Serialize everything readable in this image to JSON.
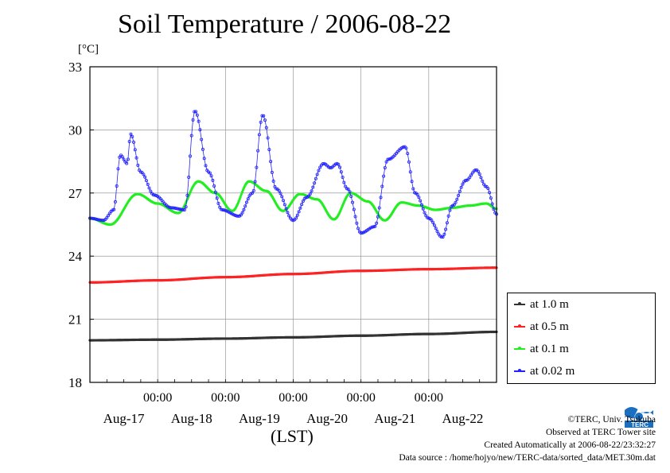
{
  "title": "Soil Temperature / 2006-08-22",
  "y_unit": "[°C]",
  "x_unit": "(LST)",
  "credits": {
    "line1": "©TERC, Univ. Tsukuba",
    "line2": "Observed at TERC Tower site",
    "line3": "Created Automatically at 2006-08-22/23:32:27",
    "line4": "Data source : /home/hojyo/new/TERC-data/sorted_data/MET.30m.dat"
  },
  "logo_text": "TERC",
  "colors": {
    "at_1_0m": "#333333",
    "at_0_5m": "#ff2222",
    "at_0_1m": "#22ee22",
    "at_0_02m": "#2222ff",
    "grid": "#888888"
  },
  "chart_data": {
    "type": "line",
    "title": "Soil Temperature / 2006-08-22",
    "ylabel": "[°C]",
    "xlabel": "(LST)",
    "ylim": [
      18,
      33
    ],
    "xlim": [
      0,
      6
    ],
    "x_unit_note": "days since Aug-16 12:00 LST",
    "yticks": [
      18,
      21,
      24,
      27,
      30,
      33
    ],
    "ytick_labels": [
      "18",
      "21",
      "24",
      "27",
      "30",
      "33"
    ],
    "xticks": [
      1,
      2,
      3,
      4,
      5
    ],
    "xtick_time_labels": [
      "00:00",
      "00:00",
      "00:00",
      "00:00",
      "00:00"
    ],
    "date_labels": [
      "Aug-17",
      "Aug-18",
      "Aug-19",
      "Aug-20",
      "Aug-21",
      "Aug-22"
    ],
    "date_label_positions": [
      0.5,
      1.5,
      2.5,
      3.5,
      4.5,
      5.5
    ],
    "grid": true,
    "legend_position": "right",
    "series": [
      {
        "name": "at 1.0 m",
        "color": "#333333",
        "x": [
          0,
          1,
          2,
          3,
          4,
          5,
          6
        ],
        "y": [
          20.0,
          20.03,
          20.08,
          20.14,
          20.22,
          20.3,
          20.4
        ]
      },
      {
        "name": "at 0.5 m",
        "color": "#ff2222",
        "x": [
          0,
          1,
          2,
          3,
          4,
          5,
          6
        ],
        "y": [
          22.75,
          22.85,
          23.0,
          23.15,
          23.3,
          23.38,
          23.45
        ]
      },
      {
        "name": "at 0.1 m",
        "color": "#22ee22",
        "x": [
          0,
          0.3,
          0.7,
          1.0,
          1.3,
          1.6,
          1.85,
          2.1,
          2.35,
          2.6,
          2.85,
          3.1,
          3.35,
          3.6,
          3.85,
          4.1,
          4.35,
          4.6,
          4.85,
          5.1,
          5.35,
          5.6,
          5.85,
          6.0
        ],
        "y": [
          25.8,
          25.5,
          26.95,
          26.5,
          26.05,
          27.55,
          27.0,
          26.15,
          27.55,
          27.1,
          26.15,
          26.95,
          26.7,
          25.75,
          27.0,
          26.6,
          25.7,
          26.55,
          26.4,
          26.2,
          26.3,
          26.4,
          26.5,
          26.25
        ]
      },
      {
        "name": "at 0.02 m",
        "color": "#2222ff",
        "x": [
          0,
          0.2,
          0.35,
          0.45,
          0.55,
          0.6,
          0.75,
          0.95,
          1.2,
          1.4,
          1.55,
          1.75,
          1.95,
          2.2,
          2.4,
          2.55,
          2.75,
          3.0,
          3.2,
          3.45,
          3.55,
          3.65,
          3.8,
          4.0,
          4.2,
          4.4,
          4.65,
          4.8,
          5.0,
          5.2,
          5.35,
          5.55,
          5.7,
          5.85,
          6.0
        ],
        "y": [
          25.8,
          25.7,
          26.2,
          28.8,
          28.4,
          29.8,
          28.0,
          26.9,
          26.3,
          26.2,
          30.9,
          28.0,
          26.2,
          25.9,
          27.0,
          30.7,
          27.2,
          25.7,
          26.8,
          28.4,
          28.2,
          28.4,
          27.2,
          25.1,
          25.4,
          28.6,
          29.2,
          27.0,
          25.8,
          24.9,
          26.4,
          27.6,
          28.1,
          27.3,
          26.0
        ]
      }
    ]
  },
  "legend": {
    "items": [
      "at 1.0 m",
      "at 0.5 m",
      "at 0.1 m",
      "at 0.02 m"
    ]
  }
}
